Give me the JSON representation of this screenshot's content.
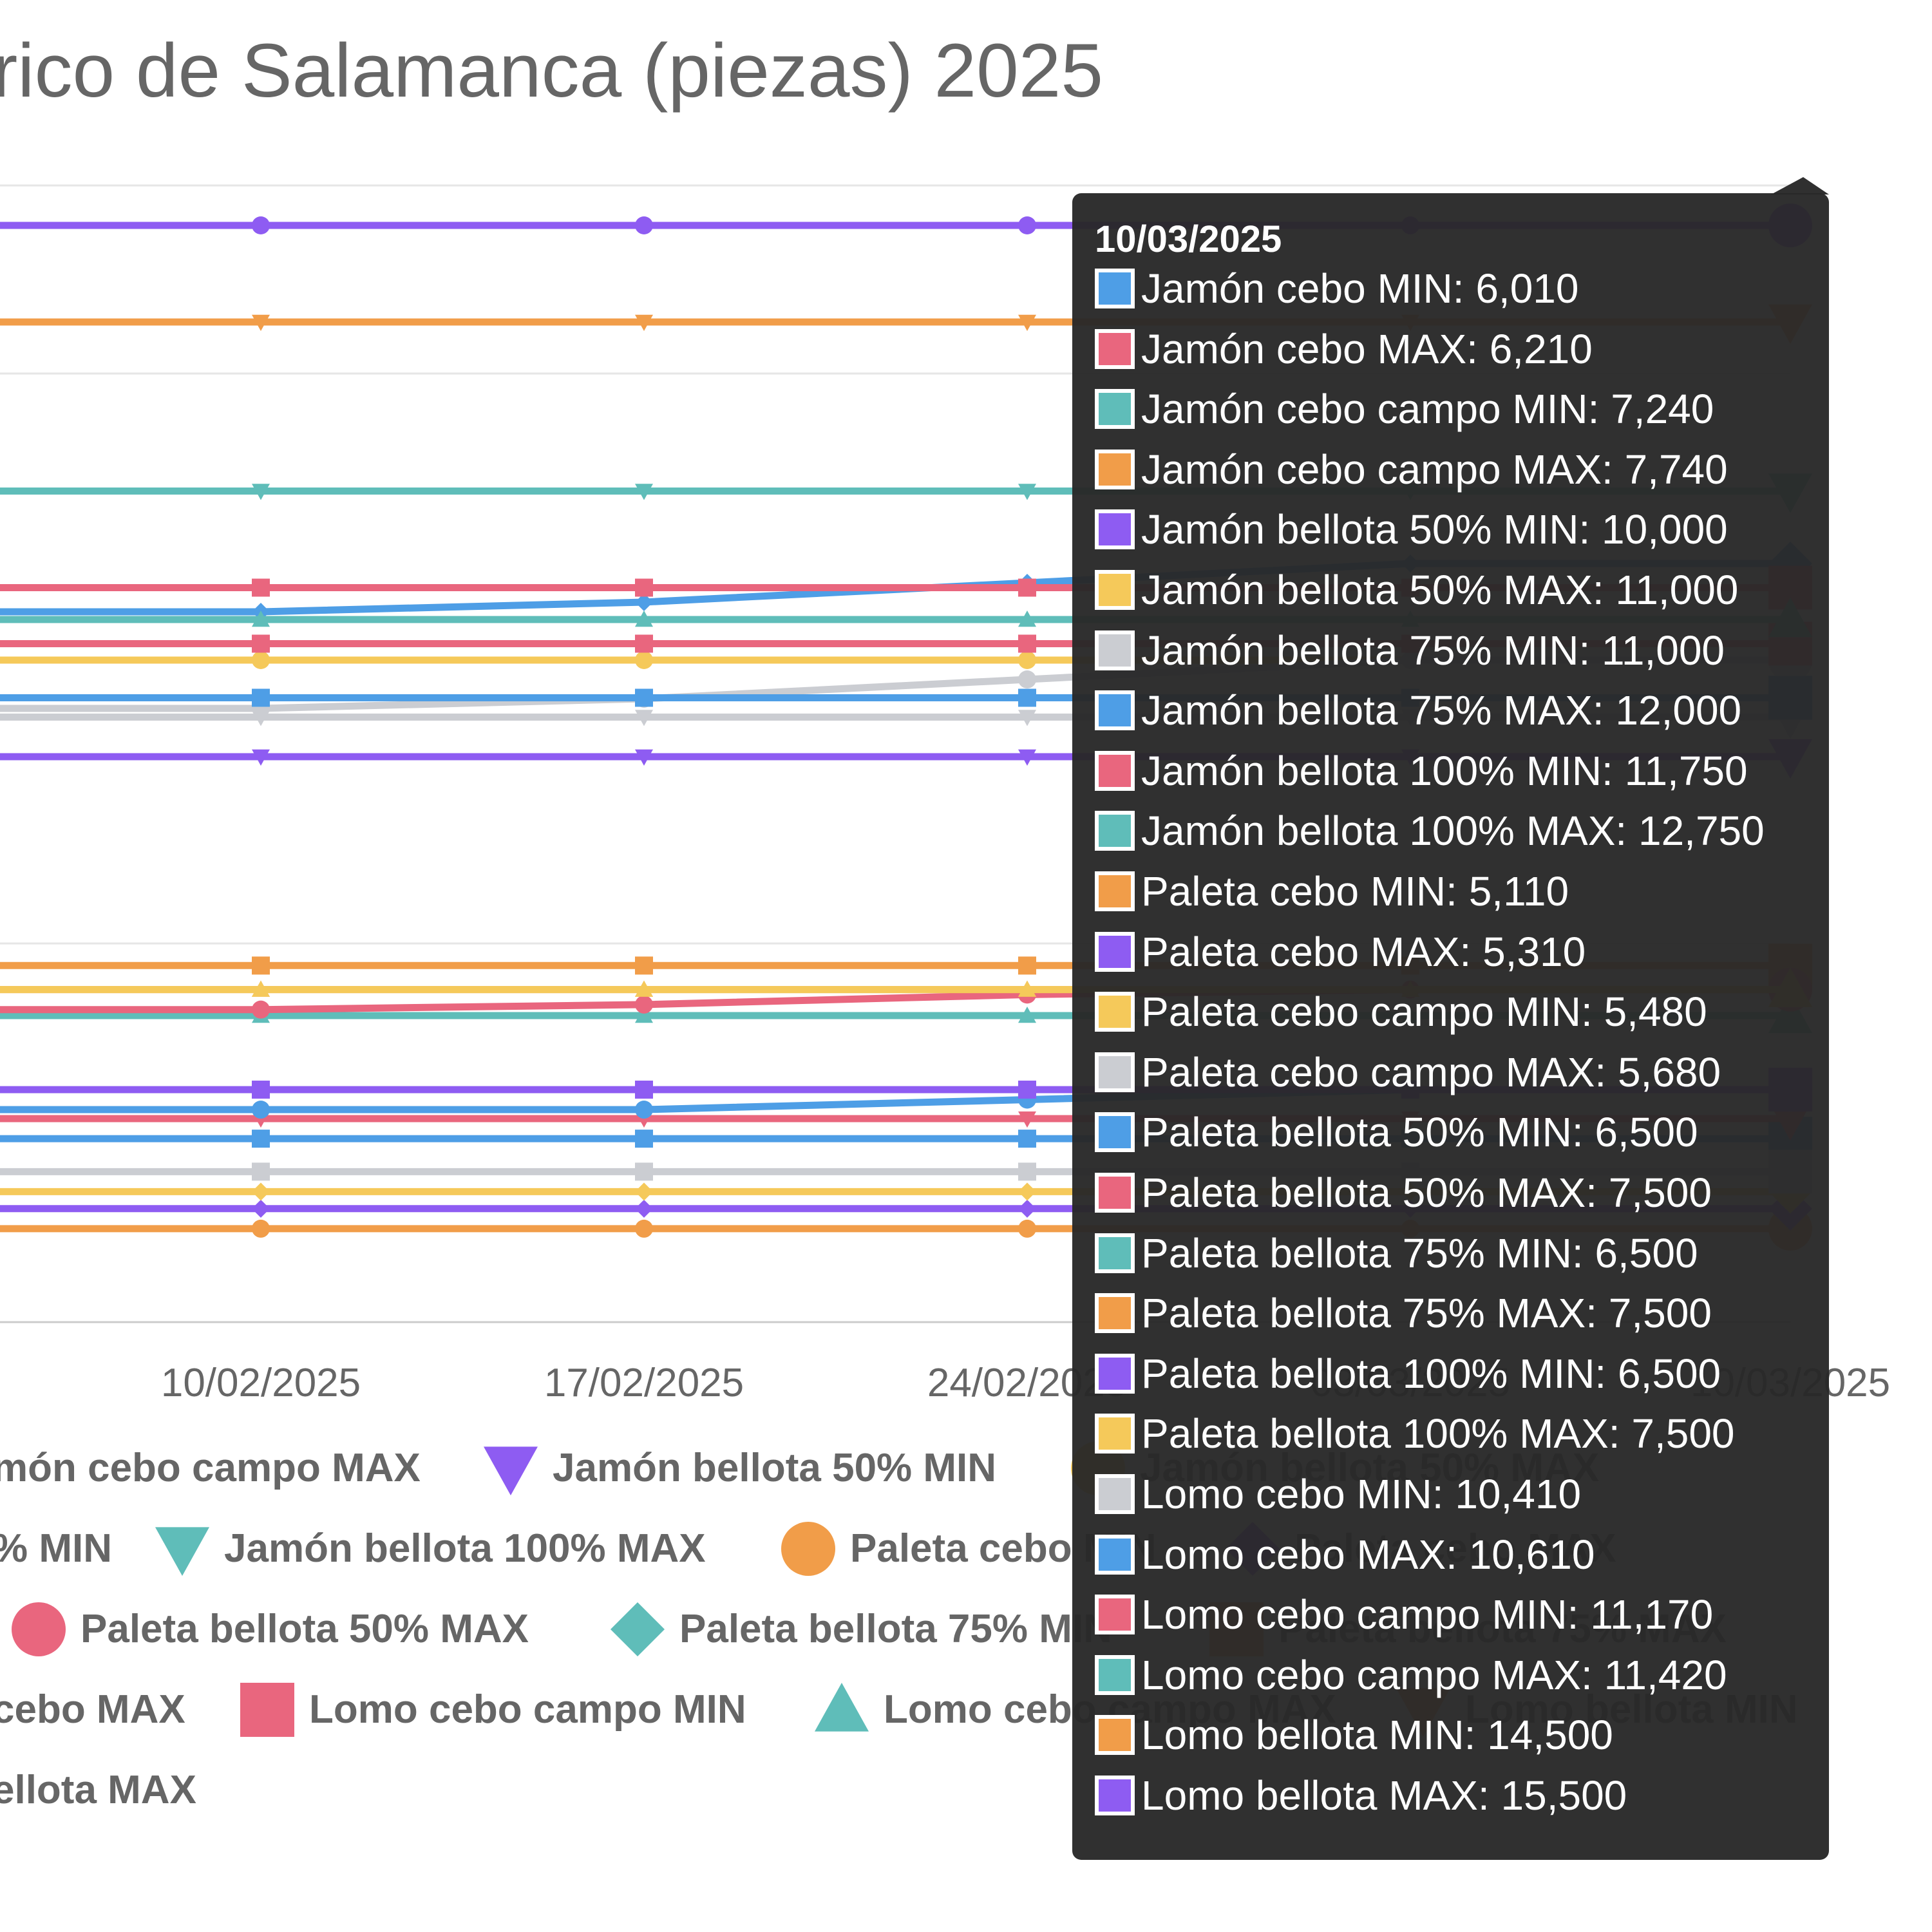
{
  "chart_data": {
    "type": "line",
    "title": "rico de Salamanca (piezas) 2025",
    "x": [
      "10/02/2025",
      "17/02/2025",
      "24/02/2025",
      "03/03/2025",
      "10/03/2025"
    ],
    "x_tick_labels": [
      "10/02/2025",
      "17/02/2025",
      "24/02/2025",
      "03/03/2025",
      "10/03/2025"
    ],
    "grid": true,
    "series": [
      {
        "name": "Jamón cebo MIN",
        "color": "#4e9ee6",
        "marker": "square",
        "values": [
          6.01,
          6.01,
          6.01,
          6.01,
          6.01
        ]
      },
      {
        "name": "Jamón cebo MAX",
        "color": "#e9667e",
        "marker": "triangle-down",
        "values": [
          6.21,
          6.21,
          6.21,
          6.21,
          6.21
        ]
      },
      {
        "name": "Jamón cebo campo MIN",
        "color": "#5fbdb9",
        "marker": "triangle",
        "values": [
          7.24,
          7.24,
          7.24,
          7.24,
          7.24
        ]
      },
      {
        "name": "Jamón cebo campo MAX",
        "color": "#f19d49",
        "marker": "square",
        "values": [
          7.74,
          7.74,
          7.74,
          7.74,
          7.74
        ]
      },
      {
        "name": "Jamón bellota 50% MIN",
        "color": "#8e5cf2",
        "marker": "triangle-down",
        "values": [
          10.0,
          10.0,
          10.0,
          10.0,
          10.0
        ]
      },
      {
        "name": "Jamón bellota 50% MAX",
        "color": "#f5c95a",
        "marker": "circle",
        "values": [
          11.0,
          11.0,
          11.0,
          11.0,
          11.0
        ]
      },
      {
        "name": "Jamón bellota 75% MIN",
        "color": "#cbcdd2",
        "marker": "circle",
        "values": [
          10.5,
          10.6,
          10.8,
          11.0,
          11.0
        ]
      },
      {
        "name": "Jamón bellota 75% MAX",
        "color": "#4e9ee6",
        "marker": "diamond",
        "values": [
          11.5,
          11.6,
          11.8,
          12.0,
          12.0
        ]
      },
      {
        "name": "Jamón bellota 100% MIN",
        "color": "#e9667e",
        "marker": "square",
        "values": [
          11.75,
          11.75,
          11.75,
          11.75,
          11.75
        ]
      },
      {
        "name": "Jamón bellota 100% MAX",
        "color": "#5fbdb9",
        "marker": "triangle-down",
        "values": [
          12.75,
          12.75,
          12.75,
          12.75,
          12.75
        ]
      },
      {
        "name": "Paleta cebo MIN",
        "color": "#f19d49",
        "marker": "circle",
        "values": [
          5.11,
          5.11,
          5.11,
          5.11,
          5.11
        ]
      },
      {
        "name": "Paleta cebo MAX",
        "color": "#8e5cf2",
        "marker": "diamond",
        "values": [
          5.31,
          5.31,
          5.31,
          5.31,
          5.31
        ]
      },
      {
        "name": "Paleta cebo campo MIN",
        "color": "#f5c95a",
        "marker": "diamond",
        "values": [
          5.48,
          5.48,
          5.48,
          5.48,
          5.48
        ]
      },
      {
        "name": "Paleta cebo campo MAX",
        "color": "#cbcdd2",
        "marker": "square",
        "values": [
          5.68,
          5.68,
          5.68,
          5.68,
          5.68
        ]
      },
      {
        "name": "Paleta bellota 50% MIN",
        "color": "#4e9ee6",
        "marker": "circle",
        "values": [
          6.3,
          6.3,
          6.4,
          6.5,
          6.5
        ]
      },
      {
        "name": "Paleta bellota 50% MAX",
        "color": "#e9667e",
        "marker": "circle",
        "values": [
          7.3,
          7.35,
          7.45,
          7.5,
          7.5
        ]
      },
      {
        "name": "Paleta bellota 75% MIN",
        "color": "#5fbdb9",
        "marker": "diamond",
        "values": [
          6.5,
          6.5,
          6.5,
          6.5,
          6.5
        ]
      },
      {
        "name": "Paleta bellota 75% MAX",
        "color": "#f19d49",
        "marker": "triangle",
        "values": [
          7.5,
          7.5,
          7.5,
          7.5,
          7.5
        ]
      },
      {
        "name": "Paleta bellota 100% MIN",
        "color": "#8e5cf2",
        "marker": "square",
        "values": [
          6.5,
          6.5,
          6.5,
          6.5,
          6.5
        ]
      },
      {
        "name": "Paleta bellota 100% MAX",
        "color": "#f5c95a",
        "marker": "triangle",
        "values": [
          7.5,
          7.5,
          7.5,
          7.5,
          7.5
        ]
      },
      {
        "name": "Lomo cebo MIN",
        "color": "#cbcdd2",
        "marker": "triangle-down",
        "values": [
          10.41,
          10.41,
          10.41,
          10.41,
          10.41
        ]
      },
      {
        "name": "Lomo cebo MAX",
        "color": "#4e9ee6",
        "marker": "square",
        "values": [
          10.61,
          10.61,
          10.61,
          10.61,
          10.61
        ]
      },
      {
        "name": "Lomo cebo campo MIN",
        "color": "#e9667e",
        "marker": "square",
        "values": [
          11.17,
          11.17,
          11.17,
          11.17,
          11.17
        ]
      },
      {
        "name": "Lomo cebo campo MAX",
        "color": "#5fbdb9",
        "marker": "triangle",
        "values": [
          11.42,
          11.42,
          11.42,
          11.42,
          11.42
        ]
      },
      {
        "name": "Lomo bellota MIN",
        "color": "#f19d49",
        "marker": "triangle-down",
        "values": [
          14.5,
          14.5,
          14.5,
          14.5,
          14.5
        ]
      },
      {
        "name": "Lomo bellota MAX",
        "color": "#8e5cf2",
        "marker": "circle",
        "values": [
          15.5,
          15.5,
          15.5,
          15.5,
          15.5
        ]
      }
    ]
  },
  "legend": {
    "rows": [
      [
        {
          "label": "món cebo campo MAX",
          "color": "#f19d49",
          "marker": "none"
        },
        {
          "label": "Jamón bellota 50% MIN",
          "color": "#8e5cf2",
          "marker": "triangle-down"
        },
        {
          "label": "Jamón bellota 50% MAX",
          "color": "#f5c95a",
          "marker": "circle"
        }
      ],
      [
        {
          "label": "% MIN",
          "color": "#e9667e",
          "marker": "none"
        },
        {
          "label": "Jamón bellota 100% MAX",
          "color": "#5fbdb9",
          "marker": "triangle-down"
        },
        {
          "label": "Paleta cebo MIN",
          "color": "#f19d49",
          "marker": "circle"
        },
        {
          "label": "Paleta cebo MAX",
          "color": "#8e5cf2",
          "marker": "diamond"
        }
      ],
      [
        {
          "label": "Paleta bellota 50% MAX",
          "color": "#e9667e",
          "marker": "circle"
        },
        {
          "label": "Paleta bellota 75% MIN",
          "color": "#5fbdb9",
          "marker": "diamond"
        },
        {
          "label": "Paleta bellota 75% MAX",
          "color": "#f19d49",
          "marker": "square"
        }
      ],
      [
        {
          "label": "cebo MAX",
          "color": "#4e9ee6",
          "marker": "none"
        },
        {
          "label": "Lomo cebo campo MIN",
          "color": "#e9667e",
          "marker": "square"
        },
        {
          "label": "Lomo cebo campo MAX",
          "color": "#5fbdb9",
          "marker": "triangle"
        },
        {
          "label": "Lomo bellota MIN",
          "color": "#f19d49",
          "marker": "triangle-down"
        }
      ],
      [
        {
          "label": "ellota MAX",
          "color": "#8e5cf2",
          "marker": "none"
        }
      ]
    ]
  },
  "tooltip": {
    "date": "10/03/2025",
    "rows": [
      {
        "text": "Jamón cebo MIN: 6,010",
        "color": "#4e9ee6"
      },
      {
        "text": "Jamón cebo MAX: 6,210",
        "color": "#e9667e"
      },
      {
        "text": "Jamón cebo campo MIN: 7,240",
        "color": "#5fbdb9"
      },
      {
        "text": "Jamón cebo campo MAX: 7,740",
        "color": "#f19d49"
      },
      {
        "text": "Jamón bellota 50% MIN: 10,000",
        "color": "#8e5cf2"
      },
      {
        "text": "Jamón bellota 50% MAX: 11,000",
        "color": "#f5c95a"
      },
      {
        "text": "Jamón bellota 75% MIN: 11,000",
        "color": "#cbcdd2"
      },
      {
        "text": "Jamón bellota 75% MAX: 12,000",
        "color": "#4e9ee6"
      },
      {
        "text": "Jamón bellota 100% MIN: 11,750",
        "color": "#e9667e"
      },
      {
        "text": "Jamón bellota 100% MAX: 12,750",
        "color": "#5fbdb9"
      },
      {
        "text": "Paleta cebo MIN: 5,110",
        "color": "#f19d49"
      },
      {
        "text": "Paleta cebo MAX: 5,310",
        "color": "#8e5cf2"
      },
      {
        "text": "Paleta cebo campo MIN: 5,480",
        "color": "#f5c95a"
      },
      {
        "text": "Paleta cebo campo MAX: 5,680",
        "color": "#cbcdd2"
      },
      {
        "text": "Paleta bellota 50% MIN: 6,500",
        "color": "#4e9ee6"
      },
      {
        "text": "Paleta bellota 50% MAX: 7,500",
        "color": "#e9667e"
      },
      {
        "text": "Paleta bellota 75% MIN: 6,500",
        "color": "#5fbdb9"
      },
      {
        "text": "Paleta bellota 75% MAX: 7,500",
        "color": "#f19d49"
      },
      {
        "text": "Paleta bellota 100% MIN: 6,500",
        "color": "#8e5cf2"
      },
      {
        "text": "Paleta bellota 100% MAX: 7,500",
        "color": "#f5c95a"
      },
      {
        "text": "Lomo cebo MIN: 10,410",
        "color": "#cbcdd2"
      },
      {
        "text": "Lomo cebo MAX: 10,610",
        "color": "#4e9ee6"
      },
      {
        "text": "Lomo cebo campo MIN: 11,170",
        "color": "#e9667e"
      },
      {
        "text": "Lomo cebo campo MAX: 11,420",
        "color": "#5fbdb9"
      },
      {
        "text": "Lomo bellota MIN: 14,500",
        "color": "#f19d49"
      },
      {
        "text": "Lomo bellota MAX: 15,500",
        "color": "#8e5cf2"
      }
    ]
  }
}
